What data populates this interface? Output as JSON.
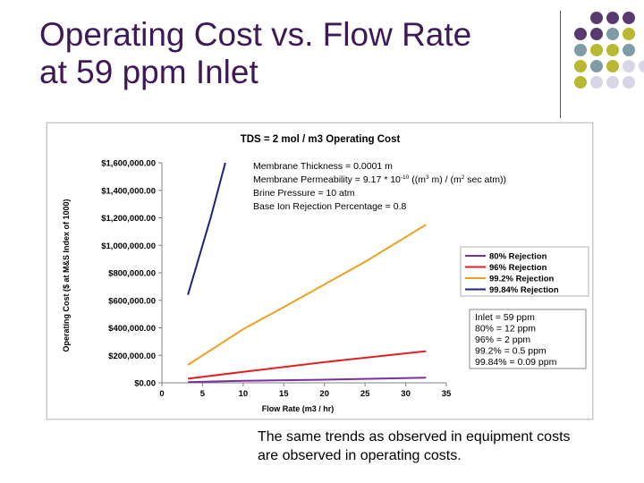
{
  "slide": {
    "title_line1": "Operating Cost vs. Flow Rate",
    "title_line2": "at 59 ppm Inlet",
    "caption_line1": "The same trends as observed in equipment costs",
    "caption_line2": "are observed in operating costs.",
    "title_color": "#3d1a57",
    "decor_colors": {
      "purple": "#5a3a6e",
      "teal": "#7f9ba3",
      "olive": "#b9b830",
      "lavender": "#d6d6e6"
    }
  },
  "chart_data": {
    "type": "line",
    "title": "TDS = 2 mol / m3 Operating Cost",
    "xlabel": "Flow Rate (m3 / hr)",
    "ylabel": "Operating Cost ($ at M&S Index of 1000)",
    "xlim": [
      0,
      35
    ],
    "ylim": [
      0,
      1600000
    ],
    "xticks": [
      "0",
      "5",
      "10",
      "15",
      "20",
      "25",
      "30",
      "35"
    ],
    "yticks": [
      "$0.00",
      "$200,000.00",
      "$400,000.00",
      "$600,000.00",
      "$800,000.00",
      "$1,000,000.00",
      "$1,200,000.00",
      "$1,400,000.00",
      "$1,600,000.00"
    ],
    "grid": false,
    "legend_position": "right",
    "notes": [
      "Membrane Thickness = 0.0001 m",
      "Membrane Permeability = 9.17 * 10",
      "Brine Pressure = 10 atm",
      "Base Ion Rejection Percentage = 0.8"
    ],
    "perm_exponent": "-10",
    "perm_units_a": " ((m",
    "perm_sup_a": "3",
    "perm_units_b": " m) / (m",
    "perm_sup_b": "2",
    "perm_units_c": " sec atm))",
    "inlet_box": [
      "Inlet = 59 ppm",
      "80% = 12 ppm",
      "96% = 2 ppm",
      "99.2% = 0.5 ppm",
      "99.84% = 0.09 ppm"
    ],
    "series": [
      {
        "name": "80% Rejection",
        "color": "#7b2f9e",
        "x": [
          3.2,
          10,
          20,
          32.5
        ],
        "y": [
          5000,
          15000,
          23000,
          38000
        ]
      },
      {
        "name": "96% Rejection",
        "color": "#e02020",
        "x": [
          3.2,
          10,
          20,
          32.5
        ],
        "y": [
          30000,
          80000,
          150000,
          230000
        ]
      },
      {
        "name": "99.2% Rejection",
        "color": "#f0a020",
        "x": [
          3.2,
          10,
          15,
          25,
          32.5
        ],
        "y": [
          130000,
          390000,
          550000,
          880000,
          1150000
        ]
      },
      {
        "name": "99.84% Rejection",
        "color": "#1a237e",
        "x": [
          3.2,
          6,
          7.8
        ],
        "y": [
          640000,
          1200000,
          1600000
        ]
      }
    ]
  }
}
